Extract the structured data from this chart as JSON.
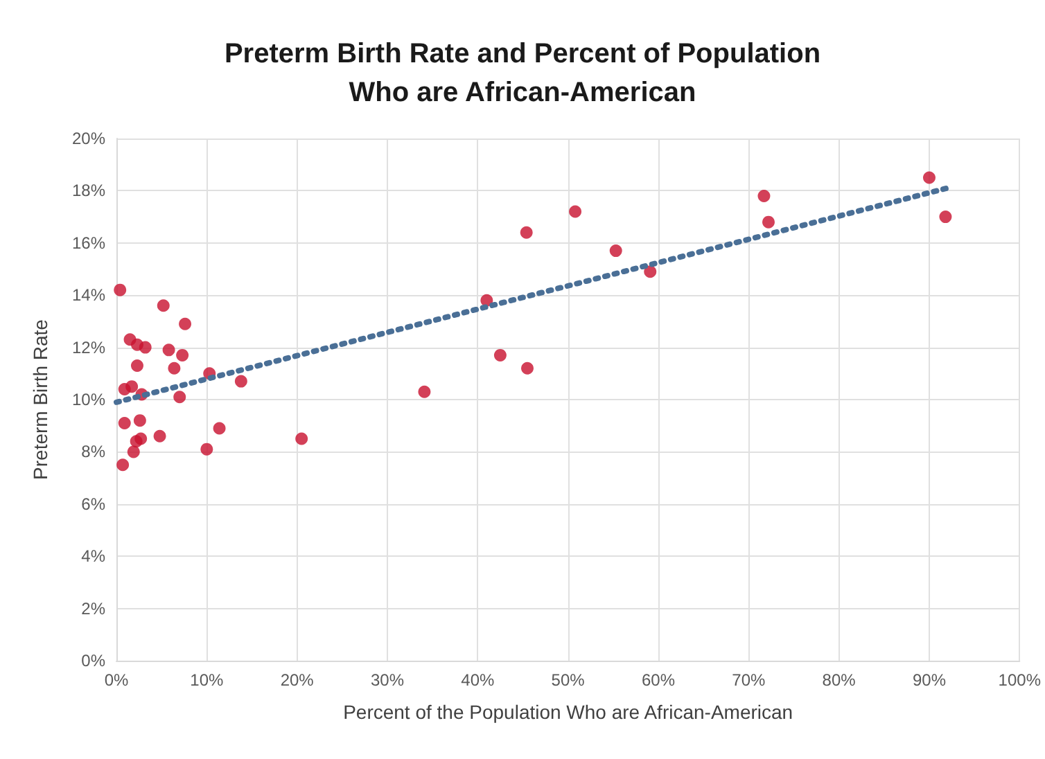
{
  "chart_data": {
    "type": "scatter",
    "title": "Preterm Birth Rate and Percent of Population\nWho are African-American",
    "xlabel": "Percent of the Population Who are African-American",
    "ylabel": "Preterm Birth Rate",
    "xlim": [
      0,
      100
    ],
    "xticks": [
      {
        "value": 0,
        "label": "0%"
      },
      {
        "value": 10,
        "label": "10%"
      },
      {
        "value": 20,
        "label": "20%"
      },
      {
        "value": 30,
        "label": "30%"
      },
      {
        "value": 40,
        "label": "40%"
      },
      {
        "value": 50,
        "label": "50%"
      },
      {
        "value": 60,
        "label": "60%"
      },
      {
        "value": 70,
        "label": "70%"
      },
      {
        "value": 80,
        "label": "80%"
      },
      {
        "value": 90,
        "label": "90%"
      },
      {
        "value": 100,
        "label": "100%"
      }
    ],
    "ylim": [
      0,
      20
    ],
    "yticks": [
      {
        "value": 0,
        "label": "0%"
      },
      {
        "value": 2,
        "label": "2%"
      },
      {
        "value": 4,
        "label": "4%"
      },
      {
        "value": 6,
        "label": "6%"
      },
      {
        "value": 8,
        "label": "8%"
      },
      {
        "value": 10,
        "label": "10%"
      },
      {
        "value": 12,
        "label": "12%"
      },
      {
        "value": 14,
        "label": "14%"
      },
      {
        "value": 16,
        "label": "16%"
      },
      {
        "value": 18,
        "label": "18%"
      },
      {
        "value": 20,
        "label": "20%"
      }
    ],
    "grid": true,
    "marker": "circle",
    "series": [
      {
        "color": "#c8102e",
        "x": [
          0.4,
          5.2,
          7.6,
          1.5,
          2.3,
          3.2,
          5.8,
          7.3,
          2.3,
          6.4,
          10.3,
          13.8,
          0.9,
          1.7,
          2.8,
          7.0,
          0.9,
          2.6,
          11.4,
          4.8,
          2.2,
          2.7,
          20.5,
          1.9,
          10.0,
          0.7,
          34.1,
          41.0,
          42.5,
          45.5,
          45.4,
          50.8,
          55.3,
          59.1,
          71.7,
          72.2,
          90.0,
          91.8
        ],
        "values": [
          14.2,
          13.6,
          12.9,
          12.3,
          12.1,
          12.0,
          11.9,
          11.7,
          11.3,
          11.2,
          11.0,
          10.7,
          10.4,
          10.5,
          10.2,
          10.1,
          9.1,
          9.2,
          8.9,
          8.6,
          8.4,
          8.5,
          8.5,
          8.0,
          8.1,
          7.5,
          10.3,
          13.8,
          11.7,
          11.2,
          16.4,
          17.2,
          15.7,
          14.9,
          17.8,
          16.8,
          18.5,
          17.0
        ]
      },
      {
        "type": "line",
        "color": "#4a6f96",
        "marker": "none",
        "line_style": "dotted",
        "x": [
          0,
          92
        ],
        "values": [
          9.9,
          18.1
        ]
      }
    ]
  }
}
